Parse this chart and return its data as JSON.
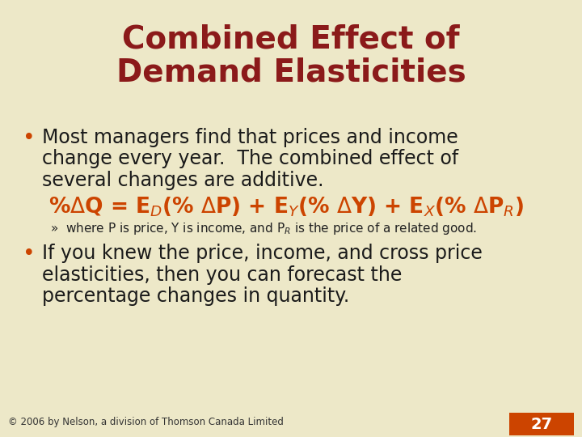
{
  "background_color": "#ede8c8",
  "title_line1": "Combined Effect of",
  "title_line2": "Demand Elasticities",
  "title_color": "#8b1a1a",
  "title_fontsize": 28,
  "bullet_color": "#cc4400",
  "bullet1_lines": [
    "Most managers find that prices and income",
    "change every year.  The combined effect of",
    "several changes are additive."
  ],
  "bullet1_fontsize": 17,
  "formula_color": "#cc4400",
  "formula_fontsize": 19,
  "sub_bullet_fontsize": 11,
  "sub_bullet_color": "#222222",
  "bullet2_lines": [
    "If you knew the price, income, and cross price",
    "elasticities, then you can forecast the",
    "percentage changes in quantity."
  ],
  "bullet2_fontsize": 17,
  "footer_text": "© 2006 by Nelson, a division of Thomson Canada Limited",
  "footer_fontsize": 8.5,
  "footer_color": "#333333",
  "page_number": "27",
  "page_box_color": "#cc4400",
  "page_number_color": "#ffffff",
  "text_color": "#1a1a1a"
}
